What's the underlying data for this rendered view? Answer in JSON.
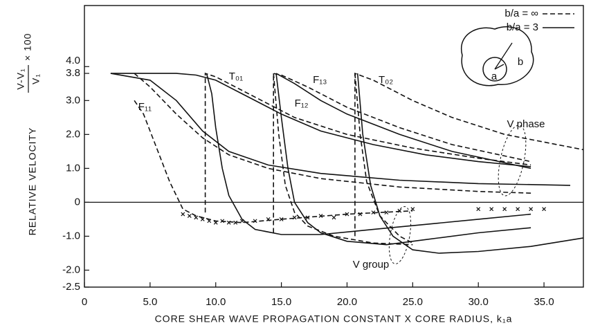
{
  "chart_data": {
    "type": "line",
    "x_label": "CORE SHEAR WAVE PROPAGATION CONSTANT X CORE RADIUS, k₁a",
    "y_label": "RELATIVE VELOCITY",
    "y_label_numerator": "V-V₁",
    "y_label_denominator": "V₁",
    "y_label_factor": "× 100",
    "xlim": [
      0,
      38
    ],
    "ylim": [
      -2.5,
      5.8
    ],
    "xticks": [
      0,
      {
        "value": 5,
        "label": "5.0"
      },
      {
        "value": 10,
        "label": "10.0"
      },
      {
        "value": 15,
        "label": "15.0"
      },
      {
        "value": 20,
        "label": "20.0"
      },
      {
        "value": 25,
        "label": "25.0"
      },
      {
        "value": 30,
        "label": "30.0"
      },
      {
        "value": 35,
        "label": "35.0"
      }
    ],
    "yticks": [
      -2.5,
      {
        "value": -2,
        "label": "-2.0"
      },
      {
        "value": -1,
        "label": "-1.0"
      },
      0,
      {
        "value": 1,
        "label": "1.0"
      },
      {
        "value": 2,
        "label": "2.0"
      },
      {
        "value": 3,
        "label": "3.0"
      },
      {
        "value": 3.8,
        "label": "3.8"
      },
      {
        "value": 4,
        "label": "4.0"
      }
    ],
    "zero_line": true,
    "legend": [
      {
        "label": "b/a = ∞",
        "dashed": true
      },
      {
        "label": "b/a = 3",
        "dashed": false
      }
    ],
    "series": [
      {
        "dashed": false,
        "x": [
          2,
          7,
          8.5,
          10,
          12,
          15,
          18,
          22,
          26,
          30,
          34
        ],
        "values": [
          3.8,
          3.8,
          3.75,
          3.6,
          3.2,
          2.6,
          2.1,
          1.7,
          1.4,
          1.2,
          1.05
        ]
      },
      {
        "dashed": false,
        "x": [
          2,
          5,
          7,
          9,
          11,
          14,
          18,
          24,
          30,
          37
        ],
        "values": [
          3.8,
          3.6,
          3.0,
          2.1,
          1.5,
          1.1,
          0.85,
          0.65,
          0.55,
          0.5
        ]
      },
      {
        "dashed": true,
        "x": [
          3.8,
          5,
          7,
          9,
          11,
          14,
          18,
          24,
          30,
          34
        ],
        "values": [
          3.8,
          3.4,
          2.6,
          1.9,
          1.4,
          1.0,
          0.7,
          0.45,
          0.32,
          0.27
        ]
      },
      {
        "dashed": true,
        "x": [
          9.2,
          9.2,
          10,
          11,
          13,
          16,
          20,
          25,
          30,
          34
        ],
        "values": [
          -0.3,
          3.8,
          3.7,
          3.5,
          3.1,
          2.5,
          2.0,
          1.6,
          1.3,
          1.1
        ]
      },
      {
        "dashed": true,
        "x": [
          14.4,
          14.4,
          15,
          17,
          20,
          24,
          28,
          34
        ],
        "values": [
          -0.9,
          3.8,
          3.75,
          3.4,
          2.8,
          2.2,
          1.7,
          1.2
        ]
      },
      {
        "dashed": false,
        "x": [
          14.6,
          16,
          18,
          20,
          24,
          28,
          34
        ],
        "values": [
          3.8,
          3.5,
          3.0,
          2.6,
          2.0,
          1.5,
          1.0
        ]
      },
      {
        "dashed": true,
        "x": [
          20.6,
          20.6,
          22,
          25,
          28,
          32,
          38
        ],
        "values": [
          -1.0,
          3.8,
          3.6,
          3.0,
          2.5,
          2.0,
          1.55
        ]
      },
      {
        "dashed": true,
        "x": [
          3.8,
          4.5,
          5.5,
          6.5,
          7.5,
          8.5,
          10,
          12,
          15,
          20,
          25
        ],
        "values": [
          3.0,
          2.6,
          1.6,
          0.6,
          -0.2,
          -0.4,
          -0.55,
          -0.6,
          -0.5,
          -0.35,
          -0.25
        ]
      },
      {
        "dashed": false,
        "x": [
          9.3,
          9.7,
          10,
          10.5,
          11,
          12,
          13,
          15,
          18,
          22,
          26,
          30,
          34
        ],
        "values": [
          3.8,
          3.2,
          2.2,
          1.0,
          0.2,
          -0.5,
          -0.8,
          -0.95,
          -0.95,
          -0.8,
          -0.65,
          -0.5,
          -0.35
        ]
      },
      {
        "dashed": false,
        "x": [
          14.6,
          15,
          15.5,
          16,
          17,
          18,
          20,
          23,
          26,
          30,
          34
        ],
        "values": [
          3.8,
          2.5,
          1.0,
          0,
          -0.6,
          -0.9,
          -1.15,
          -1.25,
          -1.1,
          -0.9,
          -0.75
        ]
      },
      {
        "dashed": true,
        "x": [
          14.4,
          14.8,
          15.3,
          16,
          17,
          19,
          22,
          25
        ],
        "values": [
          3.8,
          2.0,
          0.5,
          -0.3,
          -0.7,
          -1.0,
          -1.2,
          -1.25
        ]
      },
      {
        "dashed": false,
        "x": [
          20.8,
          21.2,
          21.8,
          22.5,
          23.5,
          25,
          27,
          30,
          34,
          38
        ],
        "values": [
          3.8,
          2.0,
          0.5,
          -0.4,
          -1.0,
          -1.4,
          -1.5,
          -1.45,
          -1.3,
          -1.05
        ]
      },
      {
        "dashed": true,
        "x": [
          20.6,
          21,
          21.5,
          22.5,
          24,
          25
        ],
        "values": [
          3.8,
          2.0,
          0.6,
          -0.4,
          -1.0,
          -1.2
        ]
      }
    ],
    "points": {
      "x": [
        7.5,
        8,
        8.5,
        9,
        9.5,
        10,
        10.5,
        11,
        11.5,
        12,
        13,
        14,
        15,
        16,
        17,
        18,
        19,
        20,
        21,
        22,
        23,
        24,
        25,
        30,
        31,
        32,
        33,
        34,
        35
      ],
      "values": [
        -0.35,
        -0.4,
        -0.45,
        -0.5,
        -0.55,
        -0.6,
        -0.55,
        -0.6,
        -0.6,
        -0.55,
        -0.55,
        -0.5,
        -0.5,
        -0.45,
        -0.45,
        -0.4,
        -0.45,
        -0.35,
        -0.35,
        -0.3,
        -0.3,
        -0.25,
        -0.2,
        -0.2,
        -0.2,
        -0.2,
        -0.2,
        -0.2,
        -0.2
      ]
    },
    "annotations": [
      {
        "text": "T₀₁",
        "x": 11.0,
        "y": 3.7
      },
      {
        "text": "F₁₃",
        "x": 17.4,
        "y": 3.6
      },
      {
        "text": "F₁₂",
        "x": 16.0,
        "y": 2.9
      },
      {
        "text": "T₀₂",
        "x": 22.4,
        "y": 3.6
      },
      {
        "text": "F₁₁",
        "x": 4.1,
        "y": 2.8
      }
    ],
    "phase_label": "V phase",
    "group_label": "V group",
    "inset_a": "a",
    "inset_b": "b"
  }
}
